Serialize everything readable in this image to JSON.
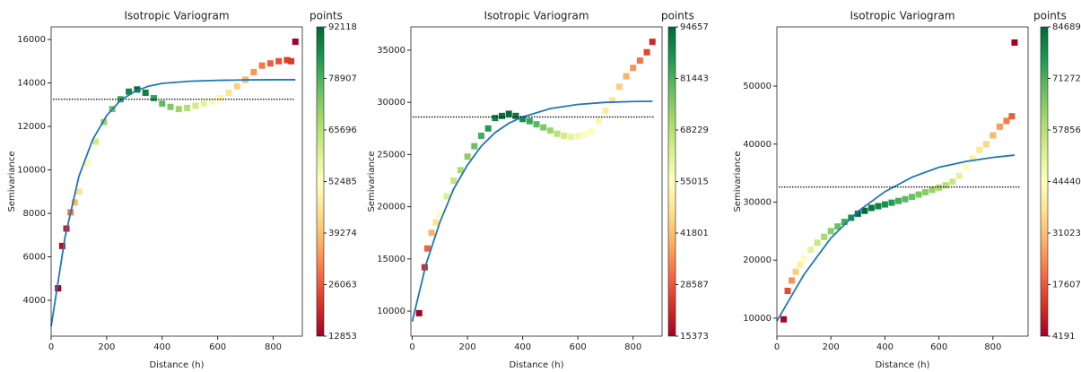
{
  "chart_data": [
    {
      "type": "scatter",
      "title": "Isotropic Variogram",
      "xlabel": "Distance (h)",
      "ylabel": "Semivariance",
      "xlim": [
        0,
        905
      ],
      "xticks": [
        0,
        200,
        400,
        600,
        800
      ],
      "ylim": [
        2350,
        16580
      ],
      "yticks": [
        4000,
        6000,
        8000,
        10000,
        12000,
        14000,
        16000
      ],
      "x": [
        25,
        40,
        55,
        70,
        85,
        100,
        130,
        160,
        190,
        220,
        250,
        280,
        310,
        340,
        370,
        400,
        430,
        460,
        490,
        520,
        550,
        580,
        610,
        640,
        670,
        700,
        730,
        760,
        790,
        820,
        850,
        865,
        880
      ],
      "values": [
        4550,
        6500,
        7300,
        8050,
        8500,
        9000,
        10300,
        11300,
        12200,
        12800,
        13250,
        13600,
        13700,
        13550,
        13300,
        13050,
        12900,
        12800,
        12850,
        12950,
        13050,
        13150,
        13300,
        13550,
        13850,
        14150,
        14500,
        14800,
        14900,
        15000,
        15050,
        15000,
        15900
      ],
      "point_counts": [
        13000,
        15000,
        18000,
        30000,
        38000,
        45000,
        54000,
        62000,
        70000,
        75000,
        81000,
        87000,
        91000,
        88000,
        82000,
        77000,
        73000,
        69000,
        66000,
        62000,
        58000,
        54000,
        50000,
        46000,
        42000,
        38000,
        34000,
        30000,
        27000,
        25000,
        23000,
        22000,
        13000
      ],
      "colormap": [
        "#a50026",
        "#d73027",
        "#f46d43",
        "#fdae61",
        "#fee08b",
        "#ffffbf",
        "#d9ef8b",
        "#a6d96a",
        "#66bd63",
        "#1a9850",
        "#006837"
      ],
      "colorbar": {
        "label": "points",
        "lim": [
          12853,
          92118
        ],
        "ticks": [
          12853,
          26063,
          39274,
          52485,
          65696,
          78907,
          92118
        ]
      },
      "model": {
        "color": "#1f77b4",
        "x": [
          0,
          50,
          100,
          150,
          200,
          250,
          300,
          350,
          400,
          500,
          600,
          700,
          800,
          880
        ],
        "values": [
          2800,
          6900,
          9700,
          11400,
          12500,
          13200,
          13600,
          13850,
          13980,
          14080,
          14120,
          14140,
          14150,
          14150
        ]
      },
      "hline": 13250
    },
    {
      "type": "scatter",
      "title": "Isotropic Variogram",
      "xlabel": "Distance (h)",
      "ylabel": "Semivariance",
      "xlim": [
        -5,
        905
      ],
      "xticks": [
        0,
        200,
        400,
        600,
        800
      ],
      "ylim": [
        7600,
        37230
      ],
      "yticks": [
        10000,
        15000,
        20000,
        25000,
        30000,
        35000
      ],
      "x": [
        25,
        45,
        55,
        70,
        85,
        100,
        125,
        150,
        175,
        200,
        225,
        250,
        275,
        300,
        325,
        350,
        375,
        400,
        425,
        450,
        475,
        500,
        525,
        550,
        575,
        600,
        625,
        650,
        675,
        700,
        725,
        750,
        775,
        800,
        825,
        850,
        870
      ],
      "values": [
        9800,
        14200,
        16000,
        17500,
        18500,
        19200,
        21000,
        22500,
        23500,
        24800,
        25800,
        26800,
        27500,
        28500,
        28700,
        28900,
        28700,
        28400,
        28200,
        27900,
        27600,
        27300,
        27000,
        26800,
        26700,
        26800,
        26900,
        27200,
        28200,
        29200,
        30200,
        31500,
        32500,
        33300,
        34000,
        34800,
        35800
      ],
      "point_counts": [
        15400,
        22000,
        30000,
        40000,
        48000,
        56000,
        62000,
        66000,
        70000,
        74000,
        78000,
        82000,
        86000,
        90000,
        93000,
        94000,
        92000,
        88000,
        84000,
        80000,
        76000,
        72000,
        68000,
        64000,
        60000,
        58000,
        56000,
        54000,
        52000,
        50000,
        48000,
        44000,
        40000,
        36000,
        32000,
        26000,
        22000
      ],
      "colormap": [
        "#a50026",
        "#d73027",
        "#f46d43",
        "#fdae61",
        "#fee08b",
        "#ffffbf",
        "#d9ef8b",
        "#a6d96a",
        "#66bd63",
        "#1a9850",
        "#006837"
      ],
      "colorbar": {
        "label": "points",
        "lim": [
          15373,
          94657
        ],
        "ticks": [
          15373,
          28587,
          41801,
          55015,
          68229,
          81443,
          94657
        ]
      },
      "model": {
        "color": "#1f77b4",
        "x": [
          0,
          50,
          100,
          150,
          200,
          250,
          300,
          350,
          400,
          500,
          600,
          700,
          800,
          870
        ],
        "values": [
          9000,
          14500,
          18500,
          21700,
          24000,
          25800,
          27100,
          28000,
          28600,
          29400,
          29800,
          30000,
          30080,
          30100
        ]
      },
      "hline": 28600
    },
    {
      "type": "scatter",
      "title": "Isotropic Variogram",
      "xlabel": "Distance (h)",
      "ylabel": "Semivariance",
      "xlim": [
        0,
        930
      ],
      "xticks": [
        0,
        200,
        400,
        600,
        800
      ],
      "ylim": [
        6900,
        60200
      ],
      "yticks": [
        10000,
        20000,
        30000,
        40000,
        50000
      ],
      "x": [
        25,
        40,
        55,
        70,
        85,
        100,
        125,
        150,
        175,
        200,
        225,
        250,
        275,
        300,
        325,
        350,
        375,
        400,
        425,
        450,
        475,
        500,
        525,
        550,
        575,
        600,
        625,
        650,
        675,
        700,
        725,
        750,
        775,
        800,
        825,
        850,
        870,
        880
      ],
      "values": [
        9800,
        14700,
        16500,
        18000,
        19200,
        20300,
        21800,
        23000,
        24000,
        25000,
        25800,
        26600,
        27300,
        28000,
        28500,
        29000,
        29300,
        29600,
        29900,
        30200,
        30500,
        30900,
        31300,
        31700,
        32100,
        32500,
        32900,
        33500,
        34500,
        36000,
        37500,
        39000,
        40000,
        41500,
        43000,
        44000,
        44800,
        57500
      ],
      "point_counts": [
        5000,
        16000,
        25000,
        33000,
        40000,
        45000,
        50000,
        55000,
        60000,
        64000,
        68000,
        72000,
        78000,
        83000,
        84000,
        82000,
        80000,
        78000,
        76000,
        72000,
        70000,
        68000,
        66000,
        64000,
        62000,
        60000,
        58000,
        55000,
        50000,
        45000,
        40000,
        38000,
        35000,
        30000,
        26000,
        22000,
        18000,
        4500
      ],
      "colormap": [
        "#a50026",
        "#d73027",
        "#f46d43",
        "#fdae61",
        "#fee08b",
        "#ffffbf",
        "#d9ef8b",
        "#a6d96a",
        "#66bd63",
        "#1a9850",
        "#006837"
      ],
      "colorbar": {
        "label": "points",
        "lim": [
          4191,
          84689
        ],
        "ticks": [
          4191,
          17607,
          31023,
          44440,
          57856,
          71272,
          84689
        ]
      },
      "model": {
        "color": "#1f77b4",
        "x": [
          0,
          100,
          200,
          300,
          400,
          500,
          600,
          700,
          800,
          880
        ],
        "values": [
          9500,
          17500,
          23800,
          28400,
          31800,
          34300,
          36000,
          37000,
          37700,
          38100
        ]
      },
      "hline": 32600
    }
  ]
}
